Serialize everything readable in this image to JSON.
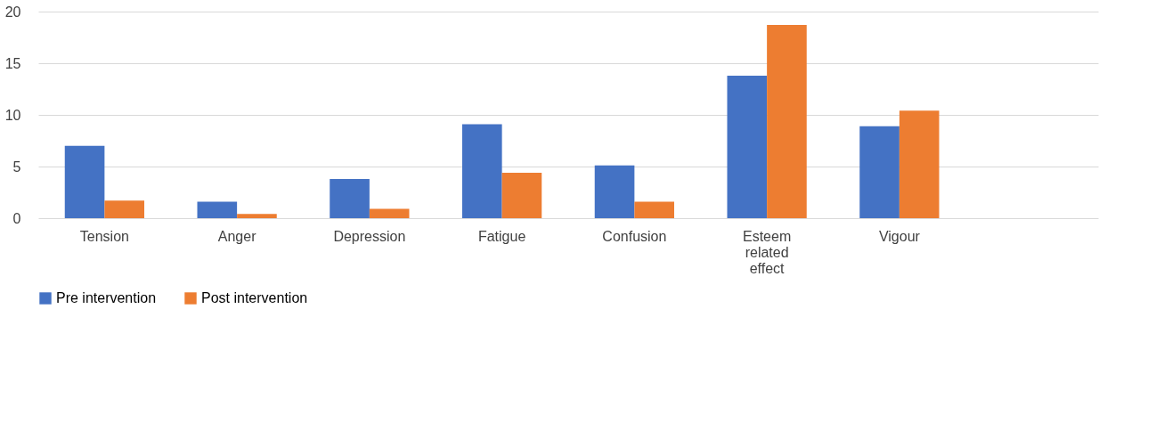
{
  "chart_data": {
    "type": "bar",
    "categories": [
      "Tension",
      "Anger",
      "Depression",
      "Fatigue",
      "Confusion",
      "Esteem related effect",
      "Vigour",
      null
    ],
    "series": [
      {
        "name": "Pre intervention",
        "color": "#4472c4",
        "values": [
          7.0,
          1.6,
          3.8,
          9.1,
          5.1,
          13.8,
          8.9,
          null
        ]
      },
      {
        "name": "Post intervention",
        "color": "#ed7d31",
        "values": [
          1.7,
          0.4,
          0.9,
          4.4,
          1.6,
          18.7,
          10.4,
          null
        ]
      }
    ],
    "ylim": [
      0,
      20
    ],
    "yticks": [
      0,
      5,
      10,
      15,
      20
    ],
    "grid": "y",
    "legend": "bottom"
  }
}
